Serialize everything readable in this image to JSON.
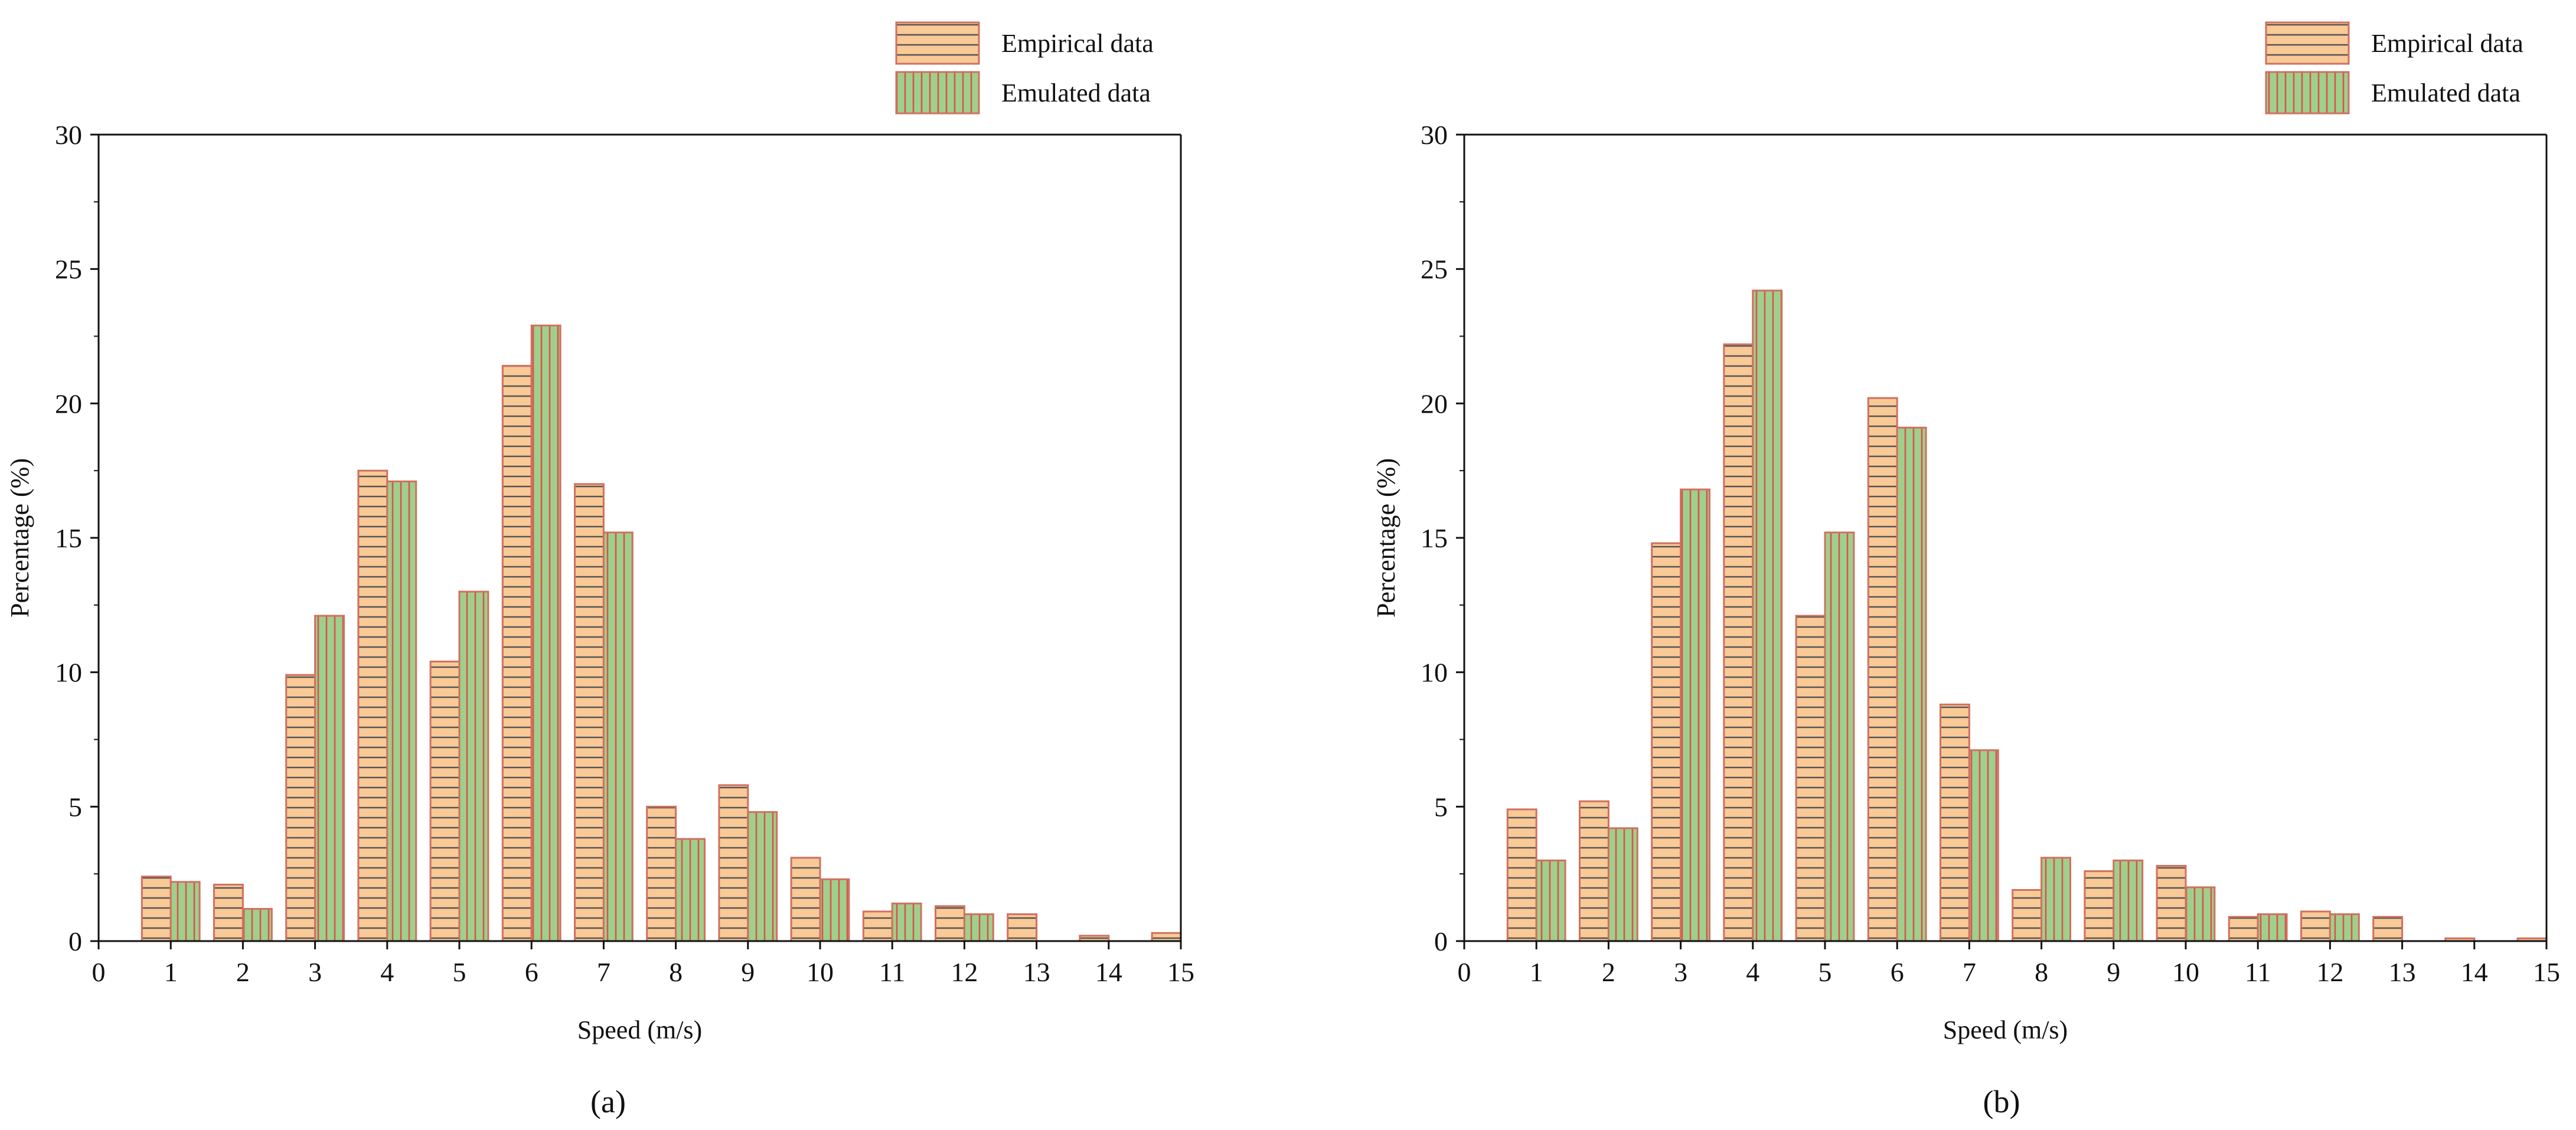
{
  "chart_data": [
    {
      "type": "bar",
      "panel_label": "(a)",
      "xlabel": "Speed (m/s)",
      "ylabel": "Percentage (%)",
      "xlim": [
        0,
        15
      ],
      "ylim": [
        0,
        30
      ],
      "xticks": [
        "0",
        "1",
        "2",
        "3",
        "4",
        "5",
        "6",
        "7",
        "8",
        "9",
        "10",
        "11",
        "12",
        "13",
        "14",
        "15"
      ],
      "yticks": [
        "0",
        "5",
        "10",
        "15",
        "20",
        "25",
        "30"
      ],
      "legend_position": "top-right",
      "categories": [
        1,
        2,
        3,
        4,
        5,
        6,
        7,
        8,
        9,
        10,
        11,
        12,
        13,
        14,
        15
      ],
      "series": [
        {
          "name": "Empirical data",
          "values": [
            2.4,
            2.1,
            9.9,
            17.5,
            10.4,
            21.4,
            17.0,
            5.0,
            5.8,
            3.1,
            1.1,
            1.3,
            1.0,
            0.2,
            0.3
          ]
        },
        {
          "name": "Emulated data",
          "values": [
            2.2,
            1.2,
            12.1,
            17.1,
            13.0,
            22.9,
            15.2,
            3.8,
            4.8,
            2.3,
            1.4,
            1.0,
            0.0,
            0.0,
            0.0
          ]
        }
      ]
    },
    {
      "type": "bar",
      "panel_label": "(b)",
      "xlabel": "Speed (m/s)",
      "ylabel": "Percentage (%)",
      "xlim": [
        0,
        15
      ],
      "ylim": [
        0,
        30
      ],
      "xticks": [
        "0",
        "1",
        "2",
        "3",
        "4",
        "5",
        "6",
        "7",
        "8",
        "9",
        "10",
        "11",
        "12",
        "13",
        "14",
        "15"
      ],
      "yticks": [
        "0",
        "5",
        "10",
        "15",
        "20",
        "25",
        "30"
      ],
      "legend_position": "top-right",
      "categories": [
        1,
        2,
        3,
        4,
        5,
        6,
        7,
        8,
        9,
        10,
        11,
        12,
        13,
        14,
        15
      ],
      "series": [
        {
          "name": "Empirical data",
          "values": [
            4.9,
            5.2,
            14.8,
            22.2,
            12.1,
            20.2,
            8.8,
            1.9,
            2.6,
            2.8,
            0.9,
            1.1,
            0.9,
            0.1,
            0.1
          ]
        },
        {
          "name": "Emulated data",
          "values": [
            3.0,
            4.2,
            16.8,
            24.2,
            15.2,
            19.1,
            7.1,
            3.1,
            3.0,
            2.0,
            1.0,
            1.0,
            0.0,
            0.0,
            0.0
          ]
        }
      ]
    }
  ],
  "colors": {
    "empirical_fill": "#f9c996",
    "empirical_hatch": "#555555",
    "emulated_fill": "#9fd08b",
    "emulated_hatch": "#d9534f",
    "bar_edge": "#d07060",
    "axis": "#111111"
  }
}
